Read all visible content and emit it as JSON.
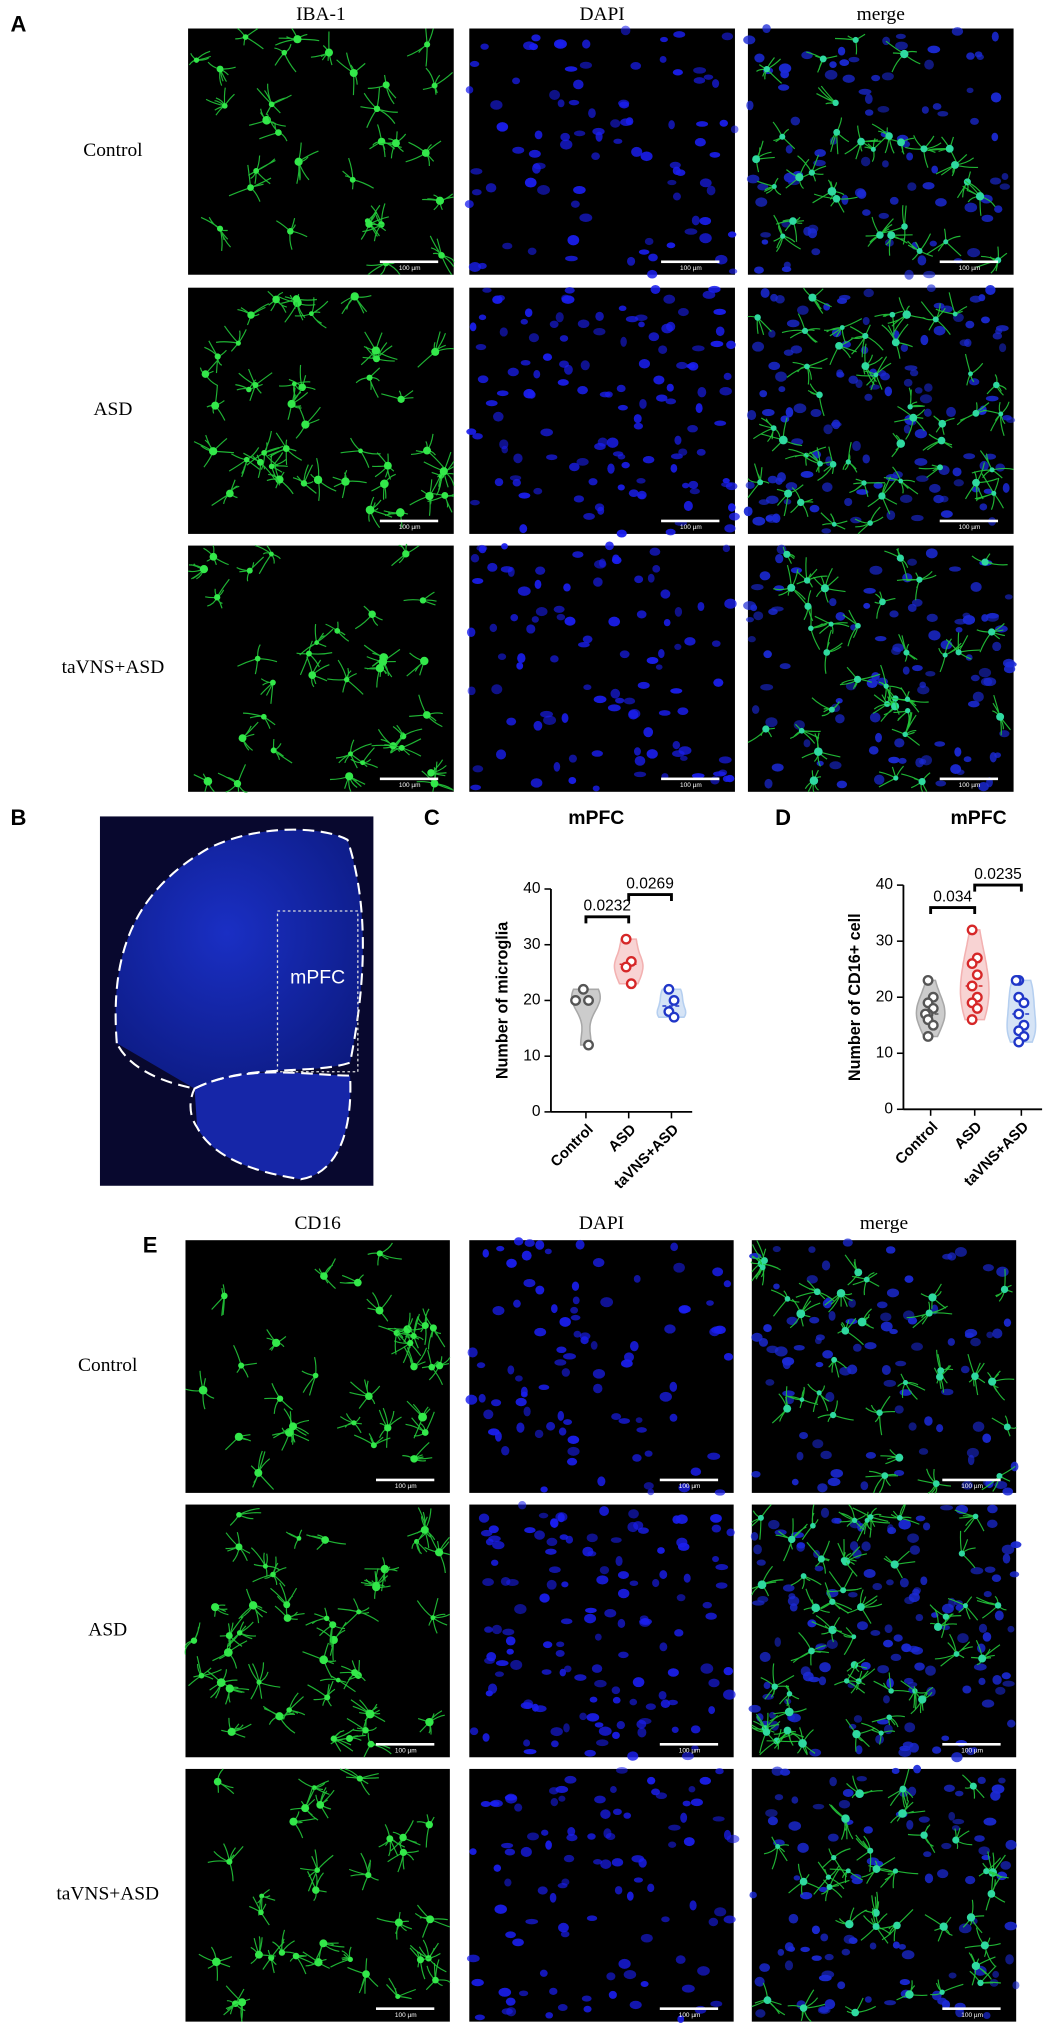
{
  "panels": {
    "A": {
      "label": "A",
      "columns": [
        "IBA-1",
        "DAPI",
        "merge"
      ],
      "rows": [
        "Control",
        "ASD",
        "taVNS+ASD"
      ],
      "scale_bar": "100 µm"
    },
    "B": {
      "label": "B",
      "region": "mPFC"
    },
    "C": {
      "label": "C"
    },
    "D": {
      "label": "D"
    },
    "E": {
      "label": "E",
      "columns": [
        "CD16",
        "DAPI",
        "merge"
      ],
      "rows": [
        "Control",
        "ASD",
        "taVNS+ASD"
      ],
      "scale_bar": "100 µm"
    }
  },
  "chart_data": [
    {
      "type": "violin",
      "title": "mPFC",
      "y_label": "Number of microglia",
      "categories": [
        "Control",
        "ASD",
        "taVNS+ASD"
      ],
      "values": [
        [
          22,
          20,
          20,
          12
        ],
        [
          31,
          27,
          26,
          23
        ],
        [
          22,
          20,
          18,
          17
        ]
      ],
      "colors": [
        "#555555",
        "#d62728",
        "#2036c8"
      ],
      "ylim": [
        0,
        40
      ],
      "yticks": [
        0,
        10,
        20,
        30,
        40
      ],
      "comparisons": [
        {
          "label": "0.0232",
          "groups": [
            0,
            1
          ]
        },
        {
          "label": "0.0269",
          "groups": [
            1,
            2
          ]
        }
      ]
    },
    {
      "type": "violin",
      "title": "mPFC",
      "y_label": "Number of CD16+ cell",
      "categories": [
        "Control",
        "ASD",
        "taVNS+ASD"
      ],
      "values": [
        [
          23,
          20,
          19,
          18,
          17,
          17,
          16,
          15,
          13
        ],
        [
          32,
          27,
          26,
          24,
          22,
          20,
          19,
          18,
          16
        ],
        [
          23,
          23,
          20,
          19,
          17,
          15,
          14,
          13,
          12
        ]
      ],
      "colors": [
        "#555555",
        "#d62728",
        "#2036c8"
      ],
      "ylim": [
        0,
        40
      ],
      "yticks": [
        0,
        10,
        20,
        30,
        40
      ],
      "comparisons": [
        {
          "label": "0.034",
          "groups": [
            0,
            1
          ]
        },
        {
          "label": "0.0235",
          "groups": [
            1,
            2
          ]
        }
      ]
    }
  ]
}
